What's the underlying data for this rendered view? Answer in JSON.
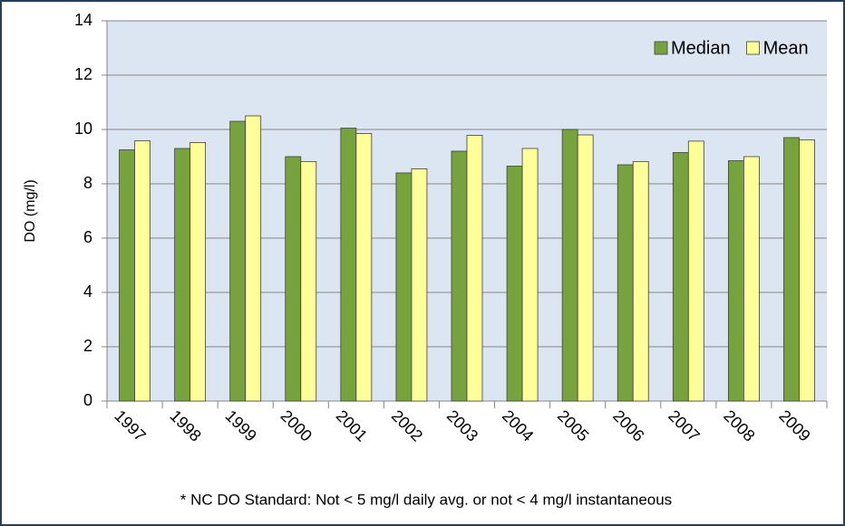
{
  "chart_data": {
    "type": "bar",
    "categories": [
      "1997",
      "1998",
      "1999",
      "2000",
      "2001",
      "2002",
      "2003",
      "2004",
      "2005",
      "2006",
      "2007",
      "2008",
      "2009"
    ],
    "series": [
      {
        "name": "Median",
        "color": "#77a33f",
        "values": [
          9.25,
          9.3,
          10.3,
          9.0,
          10.05,
          8.4,
          9.2,
          8.65,
          10.0,
          8.7,
          9.15,
          8.85,
          9.7
        ]
      },
      {
        "name": "Mean",
        "color": "#ffff99",
        "values": [
          9.58,
          9.52,
          10.5,
          8.82,
          9.85,
          8.55,
          9.78,
          9.3,
          9.8,
          8.82,
          9.57,
          9.0,
          9.62
        ]
      }
    ],
    "ylabel": "DO  (mg/l)",
    "ylim": [
      0,
      14
    ],
    "yticks": [
      0,
      2,
      4,
      6,
      8,
      10,
      12,
      14
    ],
    "grid": true,
    "legend": "top-right",
    "footnote": "* NC DO Standard: Not < 5 mg/l daily avg. or not < 4 mg/l instantaneous"
  }
}
